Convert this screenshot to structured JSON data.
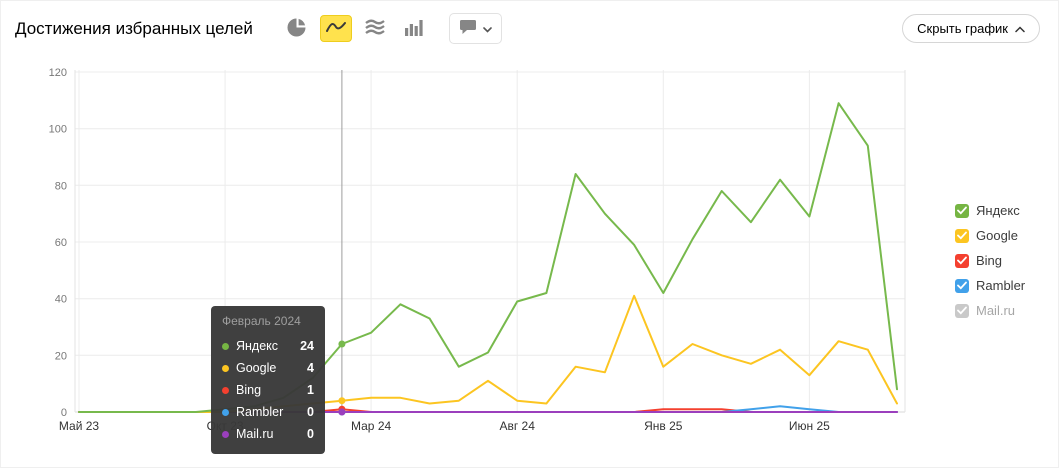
{
  "header": {
    "title": "Достижения избранных целей",
    "hide_button_label": "Скрыть график",
    "chart_type_tools": [
      {
        "key": "pie",
        "selected": false
      },
      {
        "key": "line",
        "selected": true
      },
      {
        "key": "area",
        "selected": false
      },
      {
        "key": "columns",
        "selected": false
      }
    ],
    "annotations_button": {
      "icon": "comment-bubble-icon",
      "has_dropdown": true
    }
  },
  "legend": [
    {
      "key": "yandex",
      "label": "Яндекс",
      "color": "#76b543",
      "enabled": true,
      "checked": true
    },
    {
      "key": "google",
      "label": "Google",
      "color": "#fcc521",
      "enabled": true,
      "checked": true
    },
    {
      "key": "bing",
      "label": "Bing",
      "color": "#f4402f",
      "enabled": true,
      "checked": true
    },
    {
      "key": "rambler",
      "label": "Rambler",
      "color": "#41a1ea",
      "enabled": true,
      "checked": true
    },
    {
      "key": "mailru",
      "label": "Mail.ru",
      "color": "#c9c9c9",
      "enabled": false,
      "checked": true
    }
  ],
  "tooltip": {
    "title": "Февраль 2024",
    "rows": [
      {
        "label": "Яндекс",
        "value": "24",
        "color": "#76b543"
      },
      {
        "label": "Google",
        "value": "4",
        "color": "#fcc521"
      },
      {
        "label": "Bing",
        "value": "1",
        "color": "#f4402f"
      },
      {
        "label": "Rambler",
        "value": "0",
        "color": "#41a1ea"
      },
      {
        "label": "Mail.ru",
        "value": "0",
        "color": "#9b3fbd"
      }
    ]
  },
  "chart_data": {
    "type": "line",
    "title": "Достижения избранных целей",
    "xlabel": "",
    "ylabel": "",
    "ylim": [
      0,
      120
    ],
    "y_ticks": [
      0,
      20,
      40,
      60,
      80,
      100,
      120
    ],
    "grid": true,
    "legend_position": "right",
    "months": 29,
    "x_tick_indices": [
      0,
      5,
      10,
      15,
      20,
      25
    ],
    "x_tick_labels": [
      "Май 23",
      "Окт 23",
      "Мар 24",
      "Авг 24",
      "Янв 25",
      "Июн 25"
    ],
    "highlight_index": 9,
    "highlight_label": "Февраль 2024",
    "draw_order": [
      2,
      3,
      4,
      1,
      0
    ],
    "series": [
      {
        "name": "Яндекс",
        "color": "#77b94c",
        "values": [
          0,
          0,
          0,
          0,
          0,
          1,
          2,
          5,
          12,
          24,
          28,
          38,
          33,
          16,
          21,
          39,
          42,
          84,
          70,
          59,
          42,
          61,
          78,
          67,
          82,
          69,
          109,
          94,
          8
        ]
      },
      {
        "name": "Google",
        "color": "#fcc521",
        "values": [
          0,
          0,
          0,
          0,
          0,
          0,
          1,
          2,
          3,
          4,
          5,
          5,
          3,
          4,
          11,
          4,
          3,
          16,
          14,
          41,
          16,
          24,
          20,
          17,
          22,
          13,
          25,
          22,
          3
        ]
      },
      {
        "name": "Bing",
        "color": "#f4402f",
        "values": [
          0,
          0,
          0,
          0,
          0,
          0,
          0,
          0,
          0,
          1,
          0,
          0,
          0,
          0,
          0,
          0,
          0,
          0,
          0,
          0,
          1,
          1,
          1,
          0,
          0,
          0,
          0,
          0,
          0
        ]
      },
      {
        "name": "Rambler",
        "color": "#41a1ea",
        "values": [
          0,
          0,
          0,
          0,
          0,
          0,
          0,
          0,
          0,
          0,
          0,
          0,
          0,
          0,
          0,
          0,
          0,
          0,
          0,
          0,
          0,
          0,
          0,
          1,
          2,
          1,
          0,
          0,
          0
        ]
      },
      {
        "name": "Mail.ru",
        "color": "#9b3fbd",
        "values": [
          0,
          0,
          0,
          0,
          0,
          0,
          0,
          0,
          0,
          0,
          0,
          0,
          0,
          0,
          0,
          0,
          0,
          0,
          0,
          0,
          0,
          0,
          0,
          0,
          0,
          0,
          0,
          0,
          0
        ]
      }
    ]
  }
}
